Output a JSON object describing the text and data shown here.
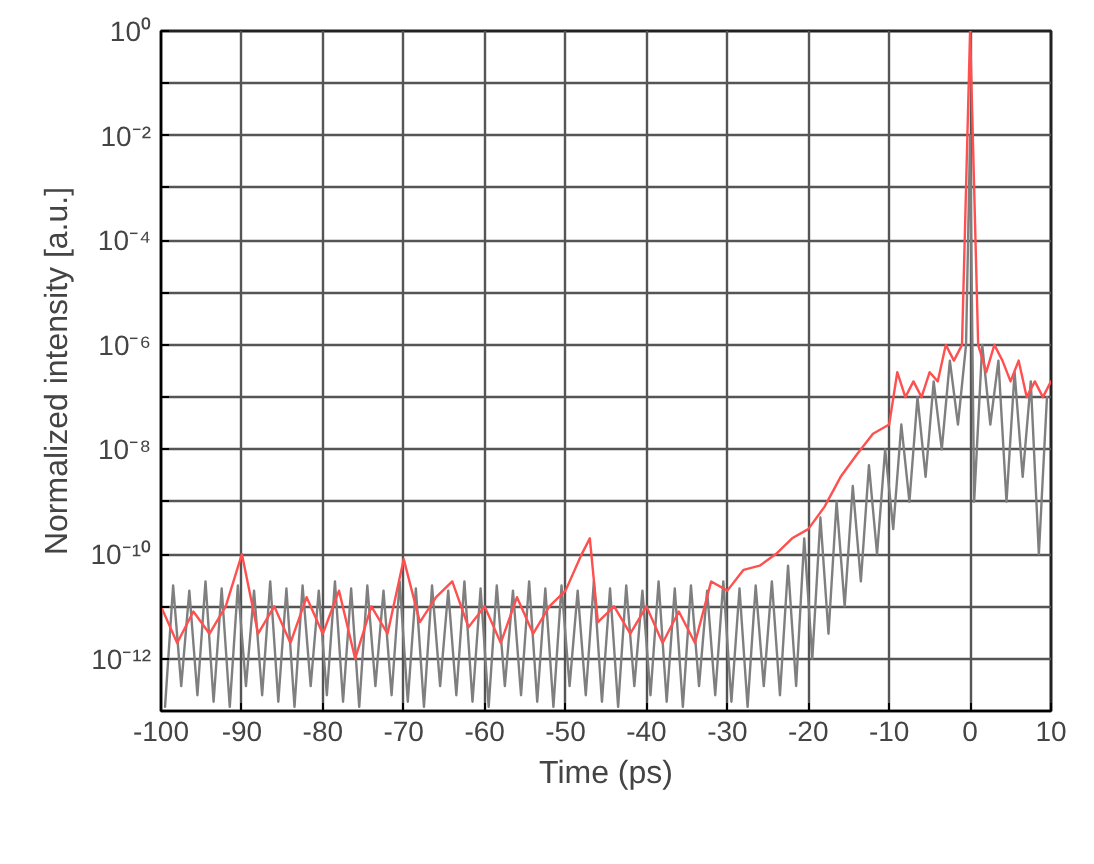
{
  "chart_data": {
    "type": "line",
    "xlabel": "Time (ps)",
    "ylabel": "Normalized intensity [a.u.]",
    "log": "y",
    "grid": true,
    "line_style": "solid",
    "marker": "none",
    "xlim": [
      -100,
      10
    ],
    "xticks": [
      -100,
      -90,
      -80,
      -70,
      -60,
      -50,
      -40,
      -30,
      -20,
      -10,
      0,
      10
    ],
    "ylim": [
      1e-13,
      1
    ],
    "yticks": [
      {
        "value": 1,
        "label": "10⁰"
      },
      {
        "value": 0.1,
        "label": null
      },
      {
        "value": 0.01,
        "label": "10⁻²"
      },
      {
        "value": 0.001,
        "label": null
      },
      {
        "value": 0.0001,
        "label": "10⁻⁴"
      },
      {
        "value": 1e-05,
        "label": null
      },
      {
        "value": 1e-06,
        "label": "10⁻⁶"
      },
      {
        "value": 1e-07,
        "label": null
      },
      {
        "value": 1e-08,
        "label": "10⁻⁸"
      },
      {
        "value": 1e-09,
        "label": null
      },
      {
        "value": 1e-10,
        "label": "10⁻¹⁰"
      },
      {
        "value": 1e-11,
        "label": null
      },
      {
        "value": 1e-12,
        "label": "10⁻¹²"
      }
    ],
    "series": [
      {
        "color": "#7f7f7f",
        "x": [
          -99.5,
          -98.5,
          -97.5,
          -96.5,
          -95.5,
          -94.5,
          -93.5,
          -92.5,
          -91.5,
          -90.5,
          -89.5,
          -88.5,
          -87.5,
          -86.5,
          -85.5,
          -84.5,
          -83.5,
          -82.5,
          -81.5,
          -80.5,
          -79.5,
          -78.5,
          -77.5,
          -76.5,
          -75.5,
          -74.5,
          -73.5,
          -72.5,
          -71.5,
          -70.5,
          -69.5,
          -68.5,
          -67.5,
          -66.5,
          -65.5,
          -64.5,
          -63.5,
          -62.5,
          -61.5,
          -60.5,
          -59.5,
          -58.5,
          -57.5,
          -56.5,
          -55.5,
          -54.5,
          -53.5,
          -52.5,
          -51.5,
          -50.5,
          -49.5,
          -48.5,
          -47.5,
          -46.5,
          -45.5,
          -44.5,
          -43.5,
          -42.5,
          -41.5,
          -40.5,
          -39.5,
          -38.5,
          -37.5,
          -36.5,
          -35.5,
          -34.5,
          -33.5,
          -32.5,
          -31.5,
          -30.5,
          -29.5,
          -28.5,
          -27.5,
          -26.5,
          -25.5,
          -24.5,
          -23.5,
          -22.5,
          -21.5,
          -20.5,
          -19.5,
          -18.5,
          -17.5,
          -16.5,
          -15.5,
          -14.5,
          -13.5,
          -12.5,
          -11.5,
          -10.5,
          -9.5,
          -8.5,
          -7.5,
          -6.5,
          -5.5,
          -4.5,
          -3.5,
          -2.5,
          -1.5,
          -0.5,
          0,
          0.5,
          1.5,
          2.5,
          3.5,
          4.5,
          5.5,
          6.5,
          7.5,
          8.5,
          9.5
        ],
        "values": [
          1.2e-13,
          2.5e-11,
          3e-13,
          2e-11,
          2e-13,
          3e-11,
          1.5e-13,
          2.2e-11,
          1.2e-13,
          2.5e-11,
          3e-13,
          2e-11,
          2e-13,
          3e-11,
          1.5e-13,
          2.2e-11,
          1.2e-13,
          2.5e-11,
          3e-13,
          2e-11,
          2e-13,
          3e-11,
          1.5e-13,
          2.2e-11,
          1.2e-13,
          2.5e-11,
          3e-13,
          2e-11,
          2e-13,
          3e-11,
          1.5e-13,
          2.2e-11,
          1.2e-13,
          2.5e-11,
          3e-13,
          2e-11,
          2e-13,
          3e-11,
          1.5e-13,
          2.2e-11,
          1.2e-13,
          2.5e-11,
          3e-13,
          2e-11,
          2e-13,
          3e-11,
          1.5e-13,
          2.2e-11,
          1.2e-13,
          2.5e-11,
          3e-13,
          2e-11,
          2e-13,
          3e-11,
          1.5e-13,
          2.2e-11,
          1.2e-13,
          2.5e-11,
          3e-13,
          2e-11,
          2e-13,
          3e-11,
          1.5e-13,
          2.2e-11,
          1.2e-13,
          2.5e-11,
          3e-13,
          2e-11,
          2e-13,
          3e-11,
          1.5e-13,
          2.2e-11,
          1.2e-13,
          2.5e-11,
          3e-13,
          3e-11,
          2e-13,
          6e-11,
          3e-13,
          2e-10,
          1e-12,
          5e-10,
          3e-12,
          1e-09,
          1e-11,
          2e-09,
          3e-11,
          5e-09,
          1e-10,
          1e-08,
          3e-10,
          3e-08,
          1e-09,
          1e-07,
          3e-09,
          2e-07,
          1e-08,
          5e-07,
          3e-08,
          1e-06,
          0.01,
          1e-09,
          1e-06,
          3e-08,
          5e-07,
          1e-09,
          3e-07,
          3e-09,
          2e-07,
          1e-10,
          1e-07
        ]
      },
      {
        "color": "#ff5050",
        "x": [
          -100,
          -98,
          -96,
          -94,
          -92,
          -90,
          -88,
          -86,
          -84,
          -82,
          -80,
          -78,
          -76,
          -74,
          -72,
          -70,
          -68,
          -66,
          -64,
          -62,
          -60,
          -58,
          -56,
          -54,
          -52,
          -50,
          -48,
          -47,
          -46,
          -44,
          -42,
          -40,
          -38,
          -36,
          -34,
          -32,
          -30,
          -28,
          -26,
          -24,
          -22,
          -20,
          -18,
          -16,
          -14,
          -12,
          -10,
          -9,
          -8,
          -7,
          -6,
          -5,
          -4,
          -3,
          -2,
          -1,
          0,
          0.5,
          1,
          2,
          3,
          4,
          5,
          6,
          7,
          8,
          9,
          10
        ],
        "values": [
          1e-11,
          2e-12,
          8e-12,
          3e-12,
          1e-11,
          1e-10,
          3e-12,
          1e-11,
          2e-12,
          1.5e-11,
          3e-12,
          2e-11,
          1e-12,
          1e-11,
          3e-12,
          8e-11,
          5e-12,
          1.5e-11,
          3e-11,
          4e-12,
          1e-11,
          2e-12,
          1.5e-11,
          3e-12,
          1e-11,
          2e-11,
          1e-10,
          2e-10,
          5e-12,
          1e-11,
          3e-12,
          1e-11,
          2e-12,
          8e-12,
          2e-12,
          3e-11,
          2e-11,
          5e-11,
          6e-11,
          1e-10,
          2e-10,
          3e-10,
          8e-10,
          3e-09,
          8e-09,
          2e-08,
          3e-08,
          3e-07,
          1e-07,
          2e-07,
          1e-07,
          3e-07,
          2e-07,
          1e-06,
          5e-07,
          1e-06,
          1,
          0.001,
          1e-06,
          3e-07,
          1e-06,
          5e-07,
          2e-07,
          5e-07,
          1e-07,
          2e-07,
          1e-07,
          2e-07
        ]
      }
    ]
  }
}
